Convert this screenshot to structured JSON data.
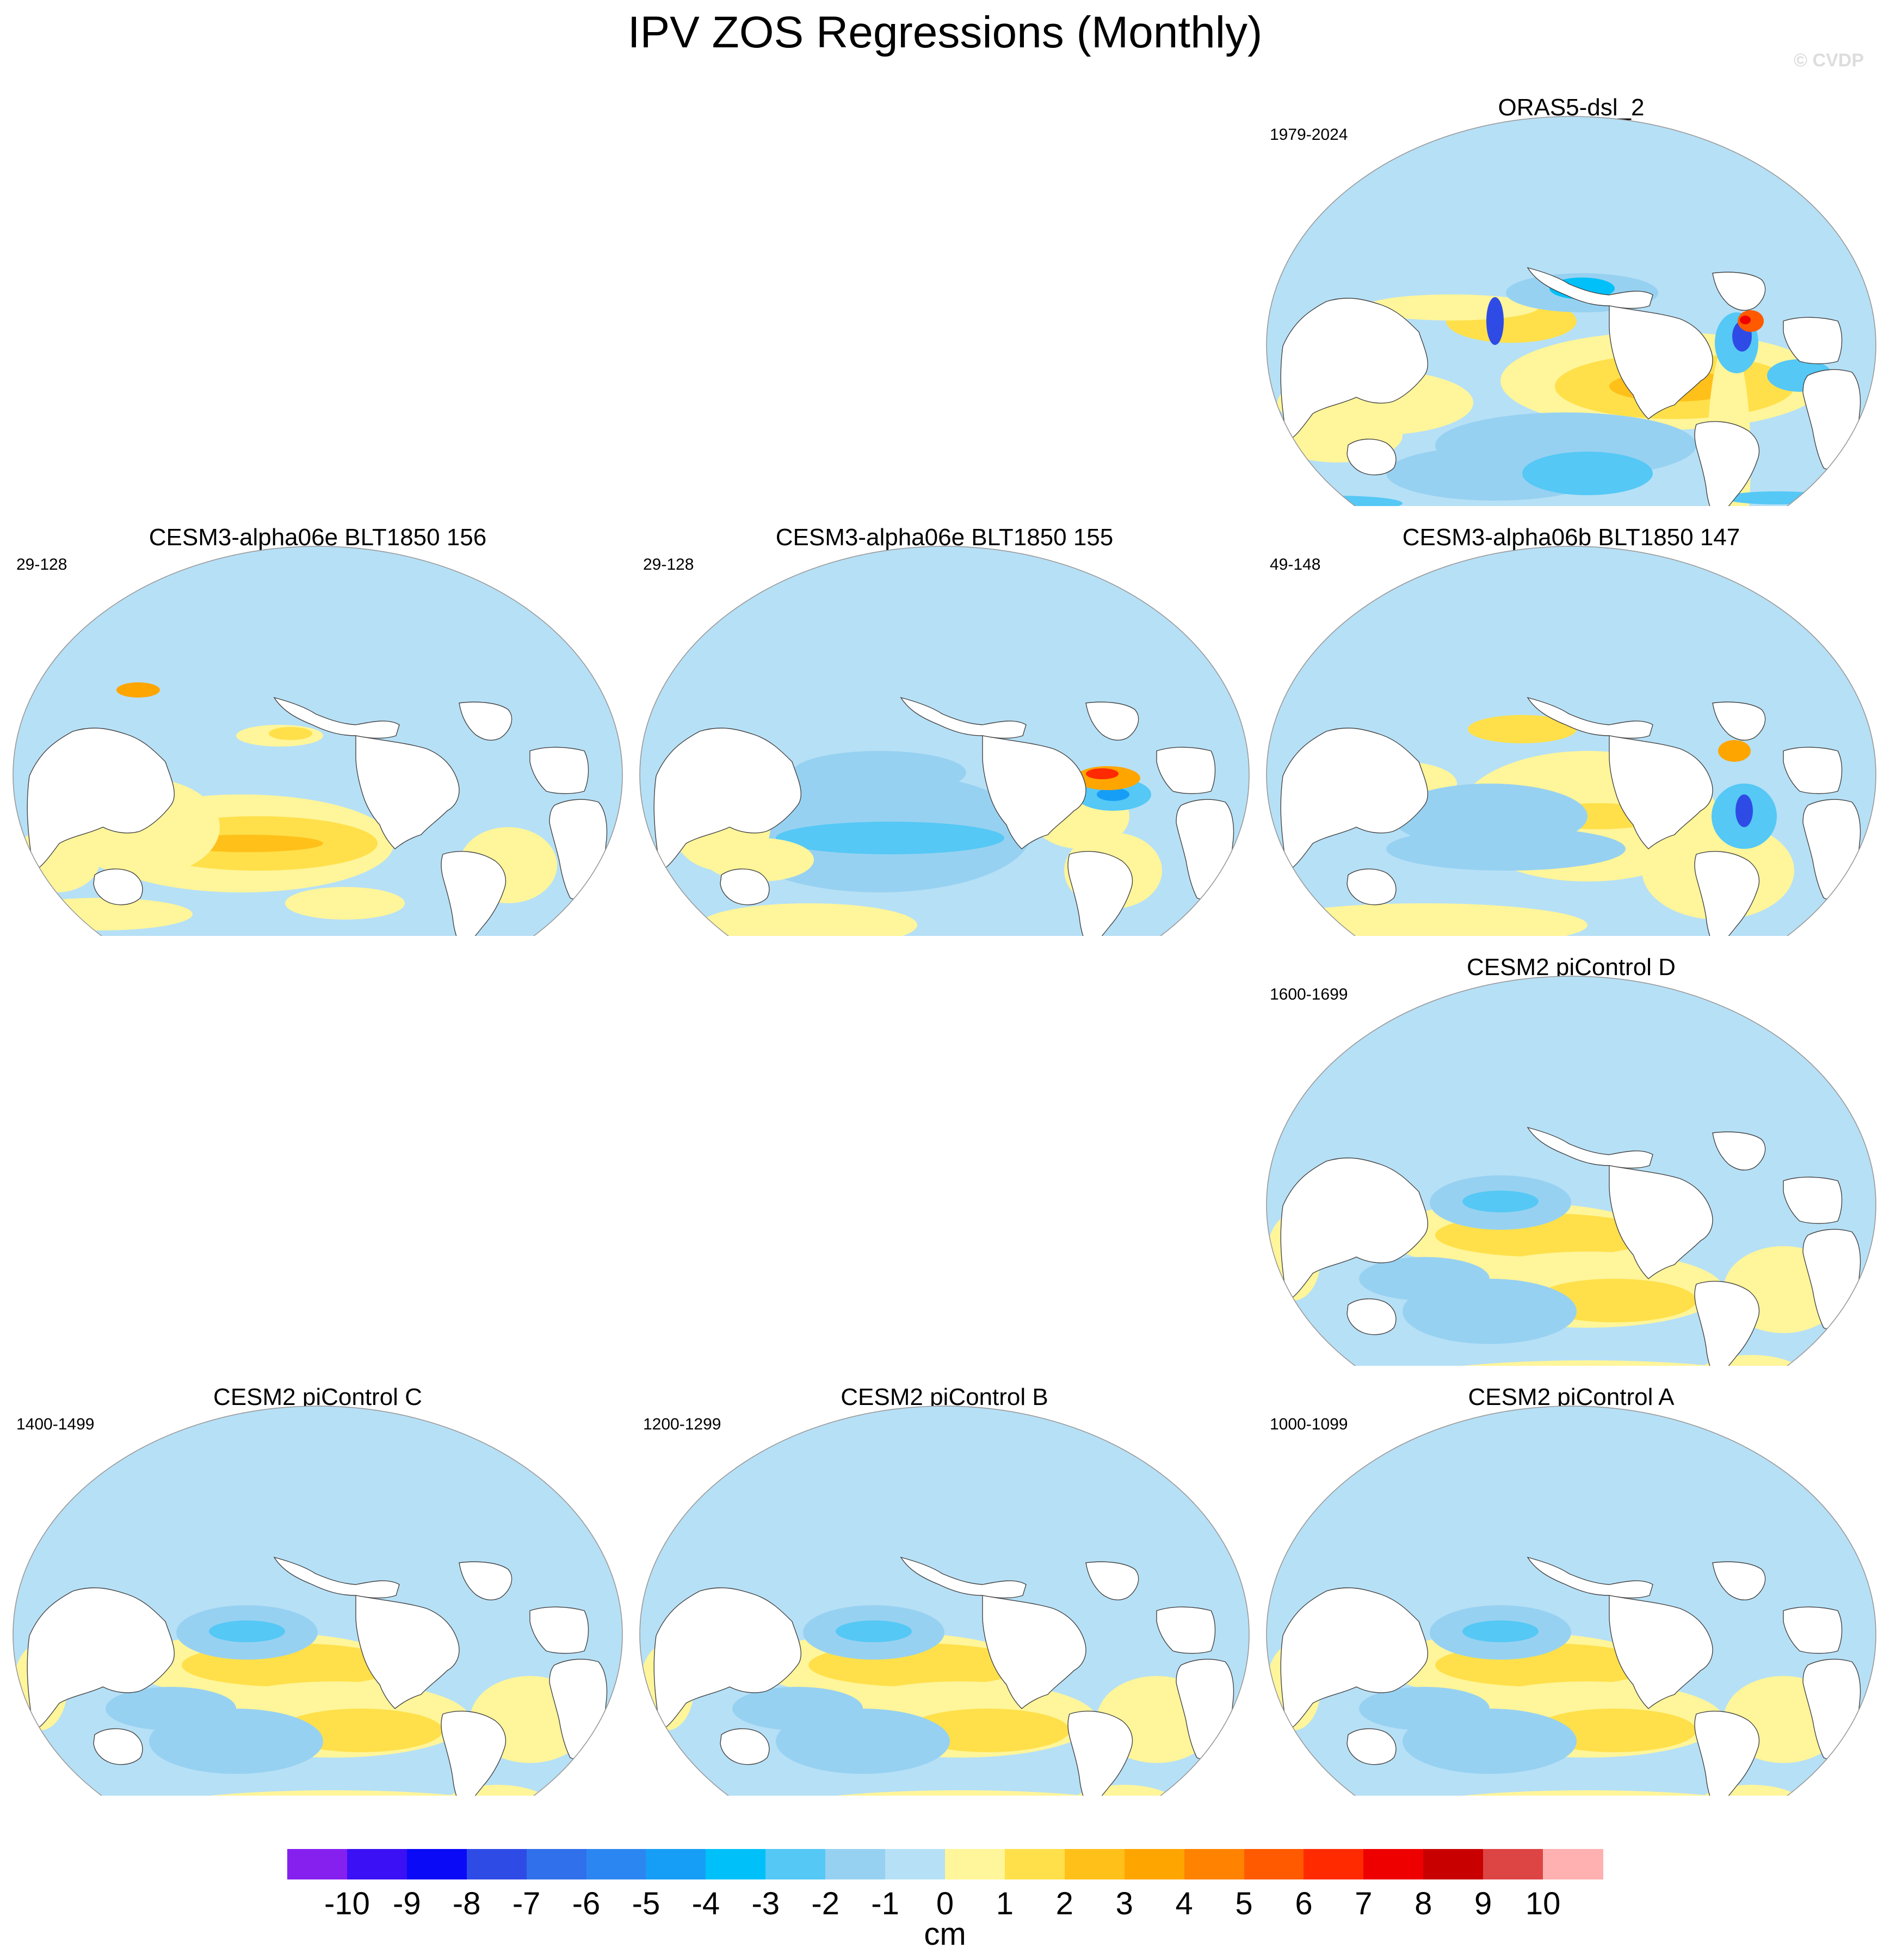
{
  "title": "IPV ZOS Regressions (Monthly)",
  "watermark": "© CVDP",
  "chart_data": {
    "type": "heatmap",
    "title": "IPV ZOS Regressions (Monthly)",
    "variable": "ZOS",
    "units": "cm",
    "colorbar": {
      "levels": [
        -10,
        -9,
        -8,
        -7,
        -6,
        -5,
        -4,
        -3,
        -2,
        -1,
        0,
        1,
        2,
        3,
        4,
        5,
        6,
        7,
        8,
        9,
        10
      ],
      "tick_labels": [
        "-10",
        "-9",
        "-8",
        "-7",
        "-6",
        "-5",
        "-4",
        "-3",
        "-2",
        "-1",
        "0",
        "1",
        "2",
        "3",
        "4",
        "5",
        "6",
        "7",
        "8",
        "9",
        "10"
      ],
      "colors": [
        "#8620ee",
        "#3b10f5",
        "#0a0af7",
        "#2f4be6",
        "#3070ea",
        "#2c86f2",
        "#169ef7",
        "#00c0f9",
        "#55c8f5",
        "#97d1f1",
        "#b6e0f6",
        "#fff59a",
        "#ffe04a",
        "#ffc01a",
        "#ffa500",
        "#ff8200",
        "#ff5a00",
        "#ff2a00",
        "#ee0000",
        "#c80000",
        "#dd4444",
        "#ffb0b0"
      ]
    },
    "panels": [
      {
        "title": "ORAS5-dsl_2",
        "period": "1979-2024",
        "pattern": "obs"
      },
      {
        "title": "CESM3-alpha06e BLT1850 156",
        "period": "29-128",
        "pattern": "e156"
      },
      {
        "title": "CESM3-alpha06e BLT1850 155",
        "period": "29-128",
        "pattern": "e155"
      },
      {
        "title": "CESM3-alpha06b BLT1850 147",
        "period": "49-148",
        "pattern": "b147"
      },
      {
        "title": "CESM2 piControl D",
        "period": "1600-1699",
        "pattern": "pi"
      },
      {
        "title": "CESM2 piControl C",
        "period": "1400-1499",
        "pattern": "pi"
      },
      {
        "title": "CESM2 piControl B",
        "period": "1200-1299",
        "pattern": "pi"
      },
      {
        "title": "CESM2 piControl A",
        "period": "1000-1099",
        "pattern": "pi"
      }
    ]
  }
}
